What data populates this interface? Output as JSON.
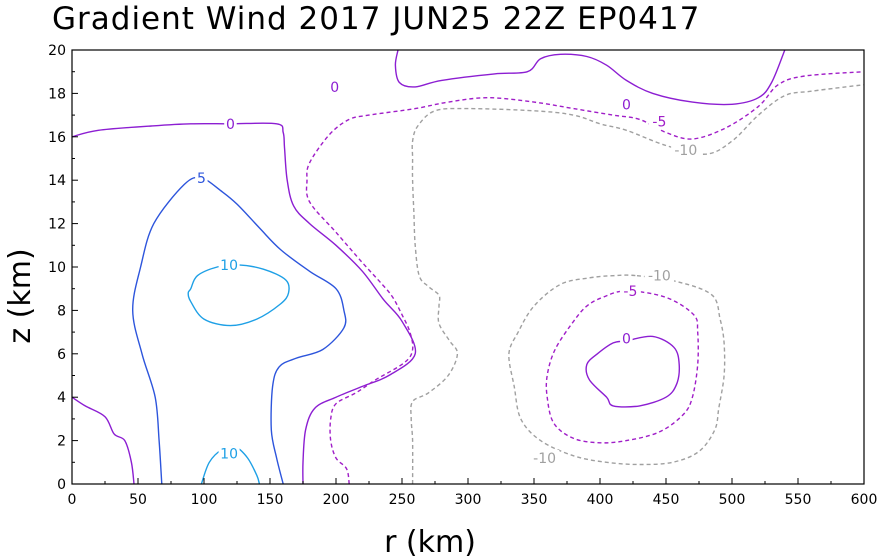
{
  "chart_data": {
    "type": "contour",
    "title": "Gradient Wind 2017 JUN25 22Z   EP0417",
    "xlabel": "r (km)",
    "ylabel": "z (km)",
    "xlim": [
      0,
      600
    ],
    "ylim": [
      0,
      20
    ],
    "xticks": [
      0,
      50,
      100,
      150,
      200,
      250,
      300,
      350,
      400,
      450,
      500,
      550,
      600
    ],
    "yticks": [
      0,
      2,
      4,
      6,
      8,
      10,
      12,
      14,
      16,
      18,
      20
    ],
    "xtick_labels": [
      "0",
      "50",
      "100",
      "150",
      "200",
      "250",
      "300",
      "350",
      "400",
      "450",
      "500",
      "550",
      "600"
    ],
    "ytick_labels": [
      "0",
      "2",
      "4",
      "6",
      "8",
      "10",
      "12",
      "14",
      "16",
      "18",
      "20"
    ],
    "levels": [
      {
        "value": 10,
        "color": "#1ea0e6",
        "dashed": false
      },
      {
        "value": 5,
        "color": "#2d55dc",
        "dashed": false
      },
      {
        "value": 0,
        "color": "#8c1ed2",
        "dashed": false
      },
      {
        "value": -5,
        "color": "#a01ec8",
        "dashed": true
      },
      {
        "value": -10,
        "color": "#a0a0a0",
        "dashed": true
      }
    ],
    "contours": [
      {
        "level": 10,
        "points": [
          [
            90,
            9.0
          ],
          [
            95,
            9.6
          ],
          [
            110,
            10.0
          ],
          [
            125,
            10.1
          ],
          [
            145,
            9.9
          ],
          [
            162,
            9.4
          ],
          [
            164,
            8.8
          ],
          [
            158,
            8.3
          ],
          [
            140,
            7.6
          ],
          [
            120,
            7.3
          ],
          [
            100,
            7.6
          ],
          [
            90,
            8.4
          ],
          [
            88,
            8.8
          ]
        ]
      },
      {
        "level": 10,
        "points": [
          [
            98,
            0
          ],
          [
            104,
            1.0
          ],
          [
            114,
            1.6
          ],
          [
            124,
            1.7
          ],
          [
            133,
            1.2
          ],
          [
            140,
            0.4
          ],
          [
            142,
            0
          ]
        ]
      },
      {
        "level": 5,
        "points": [
          [
            68,
            0
          ],
          [
            66,
            2.0
          ],
          [
            63,
            4.0
          ],
          [
            53,
            6.0
          ],
          [
            46,
            8.0
          ],
          [
            52,
            10.0
          ],
          [
            62,
            12.0
          ],
          [
            85,
            13.8
          ],
          [
            98,
            14.1
          ],
          [
            113,
            13.5
          ],
          [
            125,
            12.9
          ],
          [
            142,
            11.8
          ],
          [
            158,
            10.8
          ],
          [
            180,
            9.8
          ],
          [
            200,
            9.0
          ],
          [
            206,
            8.0
          ],
          [
            206,
            7.2
          ],
          [
            190,
            6.2
          ],
          [
            170,
            5.8
          ],
          [
            157,
            5.4
          ],
          [
            152,
            4.5
          ],
          [
            151,
            2.5
          ],
          [
            155,
            1.2
          ],
          [
            160,
            0
          ]
        ]
      },
      {
        "level": 0,
        "points": [
          [
            0,
            4.0
          ],
          [
            10,
            3.6
          ],
          [
            25,
            3.1
          ],
          [
            32,
            2.3
          ],
          [
            40,
            2.0
          ],
          [
            45,
            1.0
          ],
          [
            47,
            0
          ]
        ]
      },
      {
        "level": 0,
        "points": [
          [
            0,
            16.0
          ],
          [
            20,
            16.3
          ],
          [
            60,
            16.5
          ],
          [
            90,
            16.6
          ],
          [
            120,
            16.6
          ],
          [
            155,
            16.6
          ],
          [
            160,
            16.2
          ],
          [
            161,
            15.5
          ],
          [
            163,
            14.0
          ],
          [
            168,
            12.8
          ],
          [
            180,
            12.0
          ],
          [
            200,
            11.0
          ],
          [
            220,
            9.8
          ],
          [
            236,
            8.5
          ],
          [
            250,
            7.5
          ],
          [
            260,
            6.0
          ],
          [
            240,
            5.0
          ],
          [
            220,
            4.5
          ],
          [
            200,
            4.0
          ],
          [
            184,
            3.5
          ],
          [
            177,
            2.5
          ],
          [
            175,
            1.0
          ],
          [
            175,
            0
          ]
        ]
      },
      {
        "level": 0,
        "points": [
          [
            247,
            20
          ],
          [
            245,
            19.3
          ],
          [
            248,
            18.5
          ],
          [
            260,
            18.3
          ],
          [
            280,
            18.6
          ],
          [
            320,
            18.9
          ],
          [
            345,
            19.0
          ],
          [
            355,
            19.6
          ],
          [
            370,
            19.8
          ],
          [
            390,
            19.7
          ],
          [
            405,
            19.3
          ],
          [
            420,
            18.6
          ],
          [
            440,
            18.0
          ],
          [
            470,
            17.6
          ],
          [
            500,
            17.5
          ],
          [
            520,
            17.8
          ],
          [
            530,
            18.5
          ],
          [
            540,
            20
          ]
        ]
      },
      {
        "level": 0,
        "points": [
          [
            420,
            6.6
          ],
          [
            440,
            6.8
          ],
          [
            456,
            6.3
          ],
          [
            460,
            5.5
          ],
          [
            458,
            4.6
          ],
          [
            450,
            4.0
          ],
          [
            430,
            3.6
          ],
          [
            410,
            3.6
          ],
          [
            405,
            4.0
          ],
          [
            392,
            4.8
          ],
          [
            390,
            5.5
          ],
          [
            398,
            6.0
          ],
          [
            410,
            6.5
          ]
        ]
      },
      {
        "level": -5,
        "points": [
          [
            210,
            0
          ],
          [
            208,
            0.7
          ],
          [
            200,
            1.2
          ],
          [
            196,
            2.0
          ],
          [
            196,
            3.0
          ],
          [
            200,
            3.7
          ],
          [
            215,
            4.2
          ],
          [
            230,
            4.8
          ],
          [
            252,
            5.6
          ],
          [
            258,
            6.2
          ],
          [
            256,
            7.0
          ],
          [
            250,
            7.8
          ],
          [
            243,
            8.6
          ],
          [
            235,
            9.2
          ],
          [
            220,
            10.2
          ],
          [
            200,
            11.6
          ],
          [
            180,
            13.0
          ],
          [
            178,
            14.0
          ],
          [
            180,
            14.8
          ],
          [
            195,
            16.1
          ],
          [
            210,
            16.8
          ],
          [
            225,
            17.0
          ],
          [
            260,
            17.3
          ],
          [
            285,
            17.6
          ],
          [
            315,
            17.8
          ],
          [
            350,
            17.6
          ],
          [
            380,
            17.3
          ],
          [
            410,
            17.0
          ],
          [
            430,
            16.8
          ],
          [
            450,
            16.2
          ],
          [
            470,
            15.9
          ],
          [
            495,
            16.4
          ],
          [
            520,
            17.4
          ],
          [
            535,
            18.4
          ],
          [
            555,
            18.8
          ],
          [
            600,
            19.0
          ]
        ]
      },
      {
        "level": -5,
        "points": [
          [
            420,
            8.9
          ],
          [
            450,
            8.6
          ],
          [
            471,
            7.8
          ],
          [
            474,
            7.0
          ],
          [
            474,
            5.5
          ],
          [
            470,
            4.0
          ],
          [
            463,
            3.2
          ],
          [
            445,
            2.4
          ],
          [
            420,
            2.0
          ],
          [
            400,
            1.9
          ],
          [
            380,
            2.1
          ],
          [
            365,
            2.8
          ],
          [
            360,
            4.0
          ],
          [
            360,
            5.0
          ],
          [
            366,
            6.2
          ],
          [
            380,
            7.5
          ],
          [
            390,
            8.2
          ],
          [
            402,
            8.6
          ]
        ]
      },
      {
        "level": -10,
        "points": [
          [
            258,
            0
          ],
          [
            258,
            2.0
          ],
          [
            257,
            3.0
          ],
          [
            258,
            3.8
          ],
          [
            270,
            4.2
          ],
          [
            285,
            5.0
          ],
          [
            292,
            6.0
          ],
          [
            286,
            6.6
          ],
          [
            278,
            7.4
          ],
          [
            278,
            8.2
          ],
          [
            278,
            8.7
          ],
          [
            270,
            9.1
          ],
          [
            263,
            9.6
          ],
          [
            260,
            11.0
          ],
          [
            259,
            12.5
          ],
          [
            258,
            14.0
          ],
          [
            258,
            15.0
          ],
          [
            258,
            15.8
          ],
          [
            262,
            16.5
          ],
          [
            275,
            17.2
          ],
          [
            300,
            17.3
          ],
          [
            350,
            17.2
          ],
          [
            380,
            17.0
          ],
          [
            400,
            16.6
          ],
          [
            420,
            16.3
          ],
          [
            450,
            15.6
          ],
          [
            480,
            15.2
          ],
          [
            500,
            15.8
          ],
          [
            520,
            17.0
          ],
          [
            540,
            17.9
          ],
          [
            560,
            18.1
          ],
          [
            600,
            18.4
          ]
        ]
      },
      {
        "level": -10,
        "points": [
          [
            428,
            9.6
          ],
          [
            460,
            9.3
          ],
          [
            485,
            8.7
          ],
          [
            491,
            7.6
          ],
          [
            494,
            6.5
          ],
          [
            494,
            5.0
          ],
          [
            490,
            3.5
          ],
          [
            487,
            2.5
          ],
          [
            475,
            1.5
          ],
          [
            455,
            1.0
          ],
          [
            430,
            0.9
          ],
          [
            405,
            1.0
          ],
          [
            380,
            1.3
          ],
          [
            355,
            2.0
          ],
          [
            340,
            3.0
          ],
          [
            335,
            4.5
          ],
          [
            331,
            6.0
          ],
          [
            338,
            7.0
          ],
          [
            350,
            8.2
          ],
          [
            370,
            9.2
          ],
          [
            392,
            9.5
          ],
          [
            410,
            9.6
          ]
        ]
      }
    ],
    "contour_labels": [
      {
        "text": "10",
        "r": 119,
        "z": 10.1,
        "level": 10
      },
      {
        "text": "10",
        "r": 119,
        "z": 1.4,
        "level": 10
      },
      {
        "text": "5",
        "r": 98,
        "z": 14.1,
        "level": 5
      },
      {
        "text": "0",
        "r": 120,
        "z": 16.6,
        "level": 0
      },
      {
        "text": "0",
        "r": 199,
        "z": 18.3,
        "level": 0
      },
      {
        "text": "0",
        "r": 420,
        "z": 17.5,
        "level": 0
      },
      {
        "text": "0",
        "r": 420,
        "z": 6.7,
        "level": 0
      },
      {
        "text": "-5",
        "r": 445,
        "z": 16.7,
        "level": -5
      },
      {
        "text": "-5",
        "r": 423,
        "z": 8.9,
        "level": -5
      },
      {
        "text": "-10",
        "r": 465,
        "z": 15.4,
        "level": -10
      },
      {
        "text": "-10",
        "r": 445,
        "z": 9.6,
        "level": -10
      },
      {
        "text": "-10",
        "r": 358,
        "z": 1.2,
        "level": -10
      }
    ]
  }
}
